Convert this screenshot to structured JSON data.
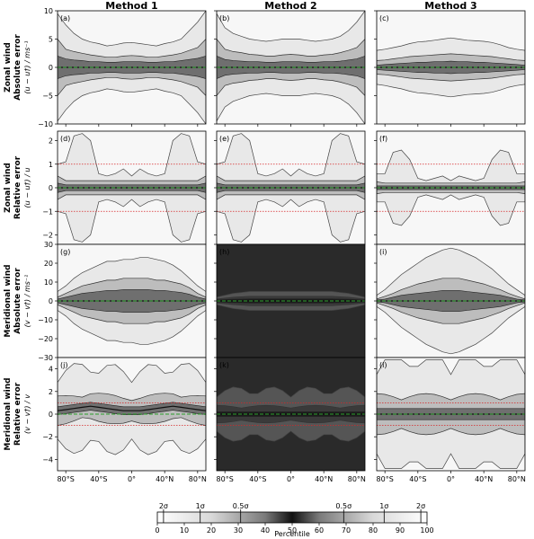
{
  "chart_data": {
    "type": "area",
    "layout": "4 rows x 3 columns of percentile-band panels",
    "columns": [
      "Method 1",
      "Method 2",
      "Method 3"
    ],
    "rows": [
      {
        "title_lines": [
          "Zonal wind",
          "Absolute error"
        ],
        "ylabel": "(u − u†) / ms⁻¹",
        "ylim": [
          -10,
          10
        ],
        "yticks": [
          10,
          5,
          0,
          -5,
          -10
        ],
        "yticklabels": [
          "10",
          "5",
          "0",
          "−5",
          "−10"
        ],
        "reference_lines": [
          0
        ],
        "dotted_lines": []
      },
      {
        "title_lines": [
          "Zonal wind",
          "Relative error"
        ],
        "ylabel": "(u − u†) / u",
        "ylim": [
          -2.4,
          2.4
        ],
        "yticks": [
          2,
          1,
          0,
          -1,
          -2
        ],
        "yticklabels": [
          "2",
          "1",
          "0",
          "−1",
          "−2"
        ],
        "reference_lines": [
          0
        ],
        "dotted_lines": [
          1,
          -1
        ]
      },
      {
        "title_lines": [
          "Meridional wind",
          "Absolute error"
        ],
        "ylabel": "(v − v†) / ms⁻¹",
        "ylim": [
          -30,
          30
        ],
        "yticks": [
          30,
          20,
          10,
          0,
          -10,
          -20,
          -30
        ],
        "yticklabels": [
          "30",
          "20",
          "10",
          "0",
          "−10",
          "−20",
          "−30"
        ],
        "reference_lines": [
          0
        ],
        "dotted_lines": []
      },
      {
        "title_lines": [
          "Meridional wind",
          "Relative error"
        ],
        "ylabel": "(v − v†) / v",
        "ylim": [
          -5,
          5
        ],
        "yticks": [
          4,
          2,
          0,
          -2,
          -4
        ],
        "yticklabels": [
          "4",
          "2",
          "0",
          "−2",
          "−4"
        ],
        "reference_lines": [
          0
        ],
        "dotted_lines": [
          1,
          -1
        ]
      }
    ],
    "panel_letters": [
      "(a)",
      "(b)",
      "(c)",
      "(d)",
      "(e)",
      "(f)",
      "(g)",
      "(h)",
      "(i)",
      "(j)",
      "(k)",
      "(l)"
    ],
    "x": {
      "ticks": [
        -80,
        -40,
        0,
        40,
        80
      ],
      "ticklabels": [
        "80°S",
        "40°S",
        "0°",
        "40°N",
        "80°N"
      ],
      "range": [
        -90,
        90
      ]
    },
    "band_half_widths": {
      "note": "approximate outer (2σ), middle (1σ) and inner (0.5σ) percentile-band half-widths per panel at latitudes -90..90 step 10",
      "a": {
        "outer": [
          9.5,
          7.5,
          6,
          5,
          4.5,
          4.2,
          3.8,
          4,
          4.3,
          4.4,
          4.2,
          4,
          3.8,
          4.2,
          4.5,
          5,
          6.5,
          8,
          10
        ],
        "mid": [
          5,
          3.2,
          2.8,
          2.5,
          2.2,
          2,
          1.8,
          1.8,
          2,
          2.1,
          2,
          1.8,
          1.8,
          2,
          2.2,
          2.5,
          3,
          3.5,
          5
        ],
        "inner": [
          2,
          1.5,
          1.3,
          1.2,
          1,
          1,
          0.9,
          0.9,
          1,
          1,
          1,
          0.9,
          0.9,
          1,
          1,
          1.2,
          1.4,
          1.6,
          2
        ]
      },
      "b": {
        "outer": [
          9.5,
          7,
          6,
          5.5,
          5,
          4.8,
          4.6,
          4.8,
          5,
          5,
          5,
          4.8,
          4.6,
          4.8,
          5,
          5.5,
          6.5,
          8,
          10
        ],
        "mid": [
          5,
          3.2,
          2.8,
          2.6,
          2.3,
          2.2,
          2,
          2,
          2.2,
          2.3,
          2.2,
          2,
          2,
          2.2,
          2.3,
          2.6,
          3,
          3.5,
          5
        ],
        "inner": [
          2,
          1.4,
          1.2,
          1.1,
          1,
          1,
          0.9,
          0.9,
          1,
          1,
          1,
          0.9,
          0.9,
          1,
          1,
          1.1,
          1.3,
          1.5,
          2
        ]
      },
      "c": {
        "outer": [
          3,
          3.2,
          3.5,
          3.8,
          4.2,
          4.5,
          4.6,
          4.8,
          5,
          5.2,
          5,
          4.8,
          4.7,
          4.6,
          4.4,
          4,
          3.5,
          3.2,
          3
        ],
        "mid": [
          1.2,
          1.3,
          1.5,
          1.7,
          1.9,
          2,
          2.1,
          2.2,
          2.3,
          2.4,
          2.3,
          2.2,
          2.1,
          2,
          1.9,
          1.7,
          1.5,
          1.3,
          1.2
        ],
        "inner": [
          0.4,
          0.5,
          0.6,
          0.7,
          0.8,
          0.9,
          0.9,
          1,
          1,
          1.1,
          1,
          1,
          0.9,
          0.9,
          0.8,
          0.7,
          0.6,
          0.5,
          0.4
        ]
      },
      "d": {
        "outer": [
          1,
          1.1,
          2.2,
          2.3,
          2,
          0.6,
          0.5,
          0.6,
          0.8,
          0.5,
          0.8,
          0.6,
          0.5,
          0.6,
          2,
          2.3,
          2.2,
          1.1,
          1
        ],
        "mid": [
          0.5,
          0.3,
          0.3,
          0.3,
          0.3,
          0.3,
          0.3,
          0.3,
          0.3,
          0.3,
          0.3,
          0.3,
          0.3,
          0.3,
          0.3,
          0.3,
          0.3,
          0.3,
          0.5
        ],
        "inner": [
          0.2,
          0.12,
          0.12,
          0.12,
          0.12,
          0.12,
          0.12,
          0.12,
          0.12,
          0.12,
          0.12,
          0.12,
          0.12,
          0.12,
          0.12,
          0.12,
          0.12,
          0.12,
          0.2
        ]
      },
      "e": {
        "outer": [
          1,
          1.1,
          2.2,
          2.3,
          2,
          0.6,
          0.5,
          0.6,
          0.8,
          0.5,
          0.8,
          0.6,
          0.5,
          0.6,
          2,
          2.3,
          2.2,
          1.1,
          1
        ],
        "mid": [
          0.5,
          0.3,
          0.3,
          0.3,
          0.3,
          0.3,
          0.3,
          0.3,
          0.3,
          0.3,
          0.3,
          0.3,
          0.3,
          0.3,
          0.3,
          0.3,
          0.3,
          0.3,
          0.5
        ],
        "inner": [
          0.2,
          0.12,
          0.12,
          0.12,
          0.12,
          0.12,
          0.12,
          0.12,
          0.12,
          0.12,
          0.12,
          0.12,
          0.12,
          0.12,
          0.12,
          0.12,
          0.12,
          0.12,
          0.2
        ]
      },
      "f": {
        "outer": [
          0.6,
          0.6,
          1.5,
          1.6,
          1.2,
          0.4,
          0.3,
          0.4,
          0.5,
          0.3,
          0.5,
          0.4,
          0.3,
          0.4,
          1.2,
          1.6,
          1.5,
          0.6,
          0.6
        ],
        "mid": [
          0.25,
          0.2,
          0.2,
          0.2,
          0.2,
          0.2,
          0.2,
          0.2,
          0.2,
          0.2,
          0.2,
          0.2,
          0.2,
          0.2,
          0.2,
          0.2,
          0.2,
          0.2,
          0.25
        ],
        "inner": [
          0.08,
          0.08,
          0.08,
          0.08,
          0.08,
          0.08,
          0.08,
          0.08,
          0.08,
          0.08,
          0.08,
          0.08,
          0.08,
          0.08,
          0.08,
          0.08,
          0.08,
          0.08,
          0.08
        ]
      },
      "g": {
        "outer": [
          5,
          8,
          12,
          15,
          17,
          19,
          21,
          21,
          22,
          22,
          23,
          23,
          22,
          21,
          19,
          16,
          12,
          8,
          5
        ],
        "mid": [
          2,
          4,
          6,
          8,
          9,
          10,
          11,
          11,
          12,
          12,
          12,
          12,
          11,
          11,
          10,
          9,
          7,
          4,
          2
        ],
        "inner": [
          1,
          2,
          3,
          4,
          4.5,
          5,
          5.5,
          5.5,
          6,
          6,
          6,
          6,
          5.5,
          5.5,
          5,
          4.5,
          3.5,
          2,
          1
        ]
      },
      "h": {
        "outer": [
          2,
          3,
          4,
          4.5,
          5,
          5,
          5,
          5,
          5,
          5,
          5,
          5,
          5,
          5,
          5,
          4.5,
          4,
          3,
          2
        ],
        "mid": [
          1,
          1.5,
          2,
          2.2,
          2.5,
          2.5,
          2.5,
          2.5,
          2.5,
          2.5,
          2.5,
          2.5,
          2.5,
          2.5,
          2.5,
          2.2,
          2,
          1.5,
          1
        ],
        "inner": [
          0.5,
          0.7,
          0.9,
          1,
          1.1,
          1.1,
          1.1,
          1.1,
          1.1,
          1.1,
          1.1,
          1.1,
          1.1,
          1.1,
          1.1,
          1,
          0.9,
          0.7,
          0.5
        ]
      },
      "i": {
        "outer": [
          3,
          6,
          10,
          14,
          17,
          20,
          23,
          25,
          27,
          28,
          27,
          25,
          23,
          20,
          17,
          13,
          9,
          6,
          3
        ],
        "mid": [
          1,
          2.5,
          4,
          6,
          7.5,
          9,
          10,
          11,
          12,
          12,
          12,
          11,
          10,
          9,
          7.5,
          6,
          4,
          2.5,
          1
        ],
        "inner": [
          0.5,
          1,
          2,
          3,
          3.5,
          4,
          4.5,
          5,
          5.5,
          5.5,
          5.5,
          5,
          4.5,
          4,
          3.5,
          3,
          2,
          1,
          0.5
        ]
      }
    },
    "relative_v_medians": {
      "note": "approximate median of relative meridional error (panels j-l), latitudes -90..90 step 10",
      "j": [
        0.3,
        0.4,
        0.5,
        0.6,
        0.7,
        0.6,
        0.5,
        0.4,
        0.3,
        0.3,
        0.3,
        0.4,
        0.5,
        0.6,
        0.7,
        0.6,
        0.5,
        0.4,
        0.3
      ],
      "k": [
        0,
        0,
        0,
        0,
        0,
        0,
        0,
        0,
        0,
        0,
        0,
        0,
        0,
        0,
        0,
        0,
        0,
        0,
        0
      ],
      "l": [
        0,
        0,
        0,
        0,
        0,
        0,
        0,
        0,
        0,
        0,
        0,
        0,
        0,
        0,
        0,
        0,
        0,
        0,
        0
      ]
    },
    "colorbar": {
      "label": "Percentile",
      "ticks": [
        0,
        10,
        20,
        30,
        40,
        50,
        60,
        70,
        80,
        90,
        100
      ],
      "ticklabels": [
        "0",
        "10",
        "20",
        "30",
        "40",
        "50",
        "60",
        "70",
        "80",
        "90",
        "100"
      ],
      "sigma_marks": [
        {
          "pos": 2.3,
          "label": "2σ"
        },
        {
          "pos": 15.9,
          "label": "1σ"
        },
        {
          "pos": 30.9,
          "label": "0.5σ"
        },
        {
          "pos": 69.1,
          "label": "0.5σ"
        },
        {
          "pos": 84.1,
          "label": "1σ"
        },
        {
          "pos": 97.7,
          "label": "2σ"
        }
      ]
    },
    "colors": {
      "band_outer": "#e8e8e8",
      "band_mid": "#bdbdbd",
      "band_inner": "#6f6f6f",
      "median": "#111111",
      "zero_line": "#2ca02c",
      "dotted_line": "#d62728"
    }
  }
}
